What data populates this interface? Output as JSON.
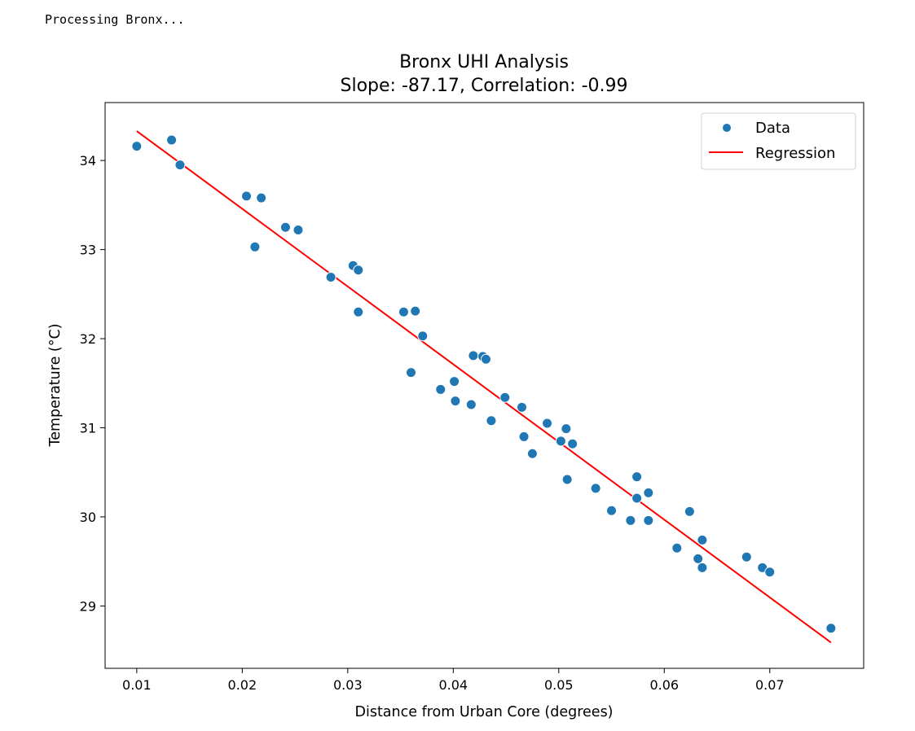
{
  "console": {
    "output": "Processing Bronx..."
  },
  "chart_data": {
    "type": "scatter",
    "title": "Bronx UHI Analysis",
    "subtitle": "Slope: -87.17, Correlation: -0.99",
    "xlabel": "Distance from Urban Core (degrees)",
    "ylabel": "Temperature (°C)",
    "xlim": [
      0.007,
      0.0789
    ],
    "ylim": [
      28.3,
      34.65
    ],
    "xticks": [
      0.01,
      0.02,
      0.03,
      0.04,
      0.05,
      0.06,
      0.07
    ],
    "xtick_labels": [
      "0.01",
      "0.02",
      "0.03",
      "0.04",
      "0.05",
      "0.06",
      "0.07"
    ],
    "yticks": [
      29,
      30,
      31,
      32,
      33,
      34
    ],
    "ytick_labels": [
      "29",
      "30",
      "31",
      "32",
      "33",
      "34"
    ],
    "grid": false,
    "legend": {
      "placement": "top-right",
      "entries": [
        {
          "label": "Data",
          "kind": "marker",
          "color": "#1f77b4"
        },
        {
          "label": "Regression",
          "kind": "line",
          "color": "#ff0000"
        }
      ]
    },
    "series": [
      {
        "name": "Data",
        "kind": "scatter",
        "color": "#1f77b4",
        "points": [
          [
            0.01,
            34.16
          ],
          [
            0.0133,
            34.23
          ],
          [
            0.0141,
            33.95
          ],
          [
            0.0204,
            33.6
          ],
          [
            0.0218,
            33.58
          ],
          [
            0.0212,
            33.03
          ],
          [
            0.0241,
            33.25
          ],
          [
            0.0253,
            33.22
          ],
          [
            0.0284,
            32.69
          ],
          [
            0.0305,
            32.82
          ],
          [
            0.031,
            32.77
          ],
          [
            0.031,
            32.3
          ],
          [
            0.0353,
            32.3
          ],
          [
            0.0364,
            32.31
          ],
          [
            0.0371,
            32.03
          ],
          [
            0.036,
            31.62
          ],
          [
            0.0388,
            31.43
          ],
          [
            0.0401,
            31.52
          ],
          [
            0.0402,
            31.3
          ],
          [
            0.0417,
            31.26
          ],
          [
            0.0419,
            31.81
          ],
          [
            0.0428,
            31.8
          ],
          [
            0.0431,
            31.77
          ],
          [
            0.0436,
            31.08
          ],
          [
            0.0449,
            31.34
          ],
          [
            0.0465,
            31.23
          ],
          [
            0.0467,
            30.9
          ],
          [
            0.0475,
            30.71
          ],
          [
            0.0489,
            31.05
          ],
          [
            0.0502,
            30.85
          ],
          [
            0.0507,
            30.99
          ],
          [
            0.0513,
            30.82
          ],
          [
            0.0508,
            30.42
          ],
          [
            0.0535,
            30.32
          ],
          [
            0.055,
            30.07
          ],
          [
            0.0568,
            29.96
          ],
          [
            0.0574,
            30.45
          ],
          [
            0.0574,
            30.21
          ],
          [
            0.0585,
            30.27
          ],
          [
            0.0585,
            29.96
          ],
          [
            0.0612,
            29.65
          ],
          [
            0.0624,
            30.06
          ],
          [
            0.0632,
            29.53
          ],
          [
            0.0636,
            29.74
          ],
          [
            0.0636,
            29.43
          ],
          [
            0.0678,
            29.55
          ],
          [
            0.0693,
            29.43
          ],
          [
            0.07,
            29.38
          ],
          [
            0.0758,
            28.75
          ]
        ]
      },
      {
        "name": "Regression",
        "kind": "line",
        "color": "#ff0000",
        "points": [
          [
            0.01,
            34.33
          ],
          [
            0.0758,
            28.59
          ]
        ]
      }
    ]
  }
}
